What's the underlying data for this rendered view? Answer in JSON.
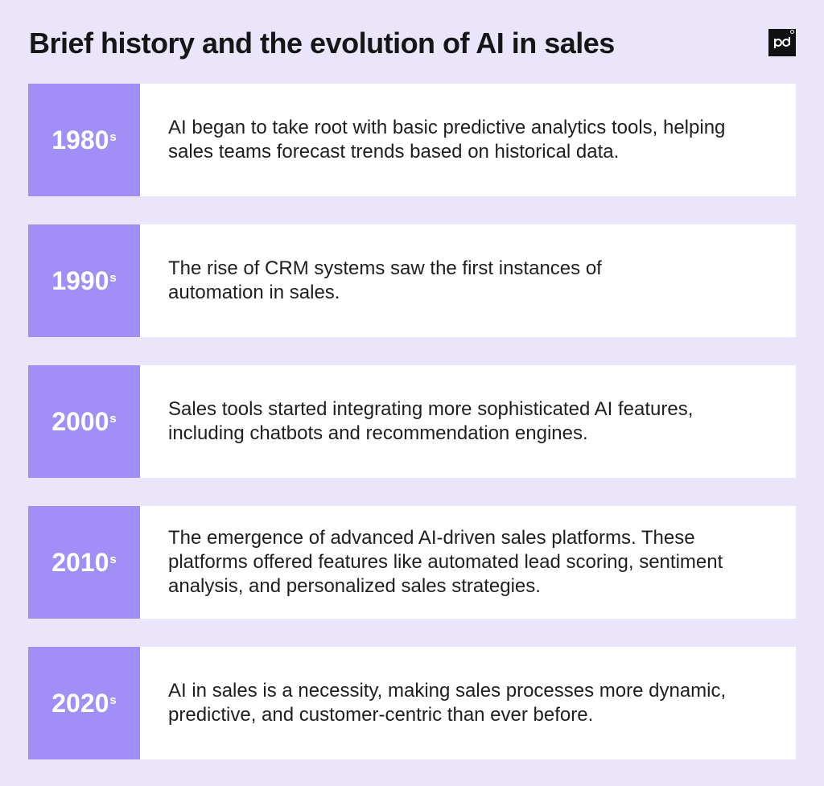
{
  "title": "Brief history and the evolution of AI in sales",
  "logo": {
    "icon": "pd-logo-icon",
    "color": "#111111"
  },
  "colors": {
    "background": "#ebe5fb",
    "accent": "#a18ff7",
    "card": "#ffffff"
  },
  "timeline": [
    {
      "decade": "1980",
      "suffix": "s",
      "text": "AI began to take root with basic predictive analytics tools, helping sales teams forecast trends based on historical data."
    },
    {
      "decade": "1990",
      "suffix": "s",
      "text": "The rise of CRM systems saw the first instances of automation in sales."
    },
    {
      "decade": "2000",
      "suffix": "s",
      "text": "Sales tools started integrating more sophisticated AI features, including chatbots and recommendation engines."
    },
    {
      "decade": "2010",
      "suffix": "s",
      "text": "The emergence of advanced AI-driven sales platforms. These platforms offered features like automated lead scoring, sentiment analysis, and personalized sales strategies."
    },
    {
      "decade": "2020",
      "suffix": "s",
      "text": "AI in sales is a necessity, making sales processes more dynamic, predictive, and customer-centric than ever before."
    }
  ]
}
